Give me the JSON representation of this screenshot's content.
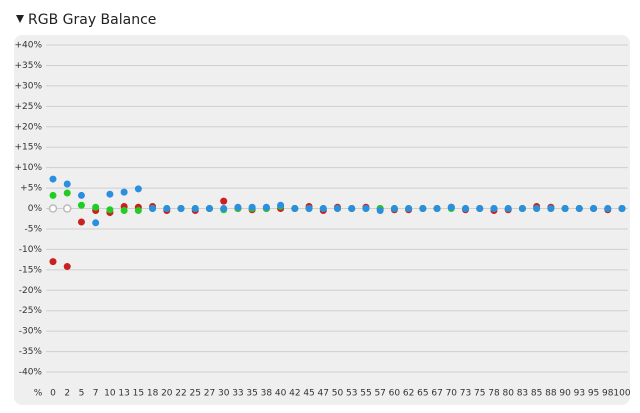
{
  "chart_data": {
    "type": "scatter",
    "title": "RGB Gray Balance",
    "x_label": "%",
    "categories": [
      0,
      2,
      5,
      7,
      10,
      13,
      15,
      18,
      20,
      22,
      25,
      27,
      30,
      33,
      35,
      38,
      40,
      42,
      45,
      47,
      50,
      53,
      55,
      57,
      60,
      62,
      65,
      67,
      70,
      73,
      75,
      78,
      80,
      83,
      85,
      88,
      90,
      93,
      95,
      98,
      100
    ],
    "series": [
      {
        "color": "#cc1f1f",
        "values": [
          -13,
          -14.2,
          -3.3,
          -0.5,
          -1,
          0.5,
          0.3,
          0.5,
          -0.5,
          0,
          -0.5,
          0,
          1.8,
          0,
          -0.3,
          0,
          0,
          0,
          0.5,
          -0.5,
          0.3,
          0,
          0.3,
          0,
          -0.3,
          -0.3,
          0,
          0,
          0.3,
          -0.3,
          0,
          -0.5,
          -0.3,
          0,
          0.5,
          0.3,
          0,
          0,
          0,
          -0.3,
          0
        ]
      },
      {
        "color": "#22cc22",
        "values": [
          3.2,
          3.8,
          0.8,
          0.3,
          -0.3,
          -0.5,
          -0.5,
          0,
          0,
          0,
          0,
          0,
          -0.3,
          0,
          0,
          0,
          0.5,
          0,
          0,
          0,
          0,
          0,
          0,
          0,
          0,
          0,
          0,
          0,
          0,
          0,
          0,
          0,
          0,
          0,
          0,
          0,
          0,
          0,
          0,
          0,
          0
        ]
      },
      {
        "color": "#2a8fe0",
        "values": [
          7.2,
          6,
          3.2,
          -3.5,
          3.5,
          4,
          4.8,
          0,
          0,
          0,
          0,
          0,
          0,
          0.3,
          0.3,
          0.3,
          0.8,
          0,
          0,
          0,
          0,
          0,
          0,
          -0.5,
          0,
          0,
          0,
          0,
          0.3,
          0,
          0,
          0,
          0,
          0,
          0,
          0,
          0,
          0,
          0,
          0,
          0
        ]
      },
      {
        "color": "#bbbbbb",
        "values": [
          0,
          0,
          null,
          null,
          null,
          null,
          null,
          null,
          null,
          null,
          null,
          null,
          null,
          null,
          null,
          null,
          null,
          null,
          null,
          null,
          null,
          null,
          null,
          null,
          null,
          null,
          null,
          null,
          null,
          null,
          null,
          null,
          null,
          null,
          null,
          null,
          null,
          null,
          null,
          null,
          null
        ]
      }
    ],
    "ylim": [
      -40,
      40
    ],
    "yticks": [
      {
        "value": 40,
        "label": "+40%"
      },
      {
        "value": 35,
        "label": "+35%"
      },
      {
        "value": 30,
        "label": "+30%"
      },
      {
        "value": 25,
        "label": "+25%"
      },
      {
        "value": 20,
        "label": "+20%"
      },
      {
        "value": 15,
        "label": "+15%"
      },
      {
        "value": 10,
        "label": "+10%"
      },
      {
        "value": 5,
        "label": "+5%"
      },
      {
        "value": 0,
        "label": "0%"
      },
      {
        "value": -5,
        "label": "-5%"
      },
      {
        "value": -10,
        "label": "-10%"
      },
      {
        "value": -15,
        "label": "-15%"
      },
      {
        "value": -20,
        "label": "-20%"
      },
      {
        "value": -25,
        "label": "-25%"
      },
      {
        "value": -30,
        "label": "-30%"
      },
      {
        "value": -35,
        "label": "-35%"
      },
      {
        "value": -40,
        "label": "-40%"
      }
    ],
    "grid": true
  }
}
